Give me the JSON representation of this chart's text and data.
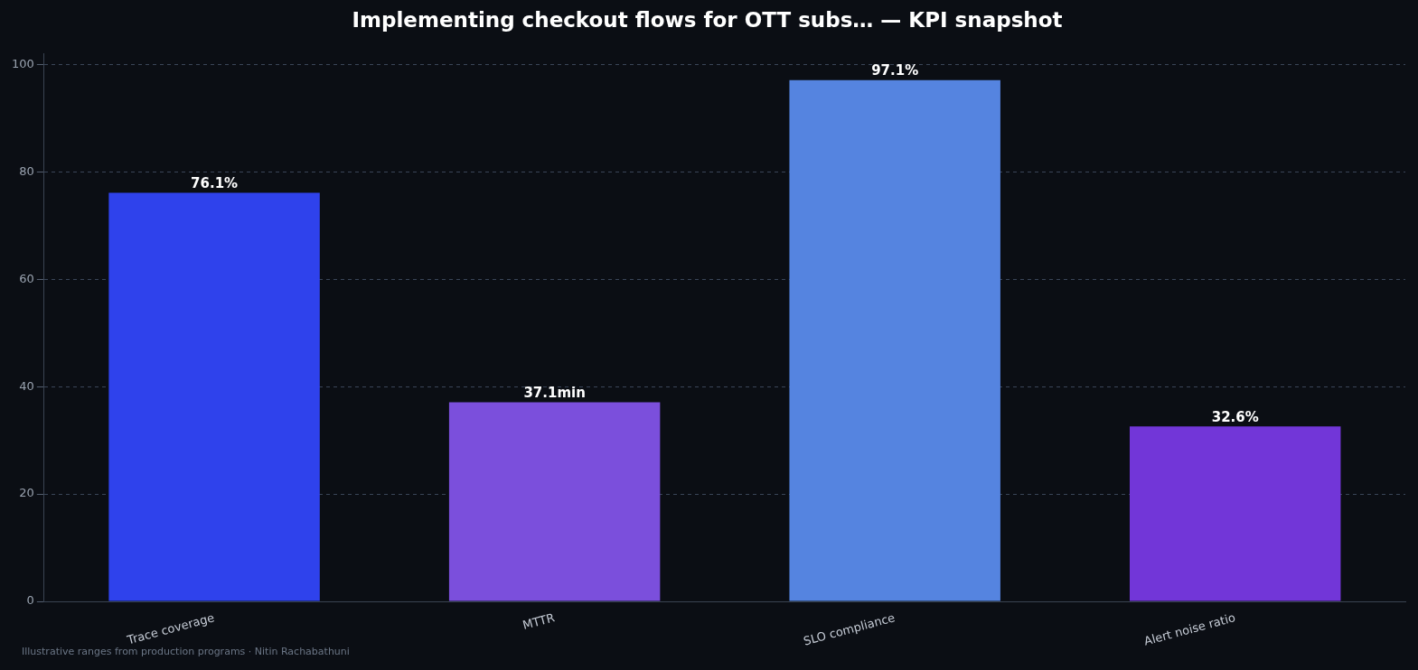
{
  "chart_data": {
    "type": "bar",
    "title": "Implementing checkout flows for OTT subs… — KPI snapshot",
    "categories": [
      "Trace coverage",
      "MTTR",
      "SLO compliance",
      "Alert noise ratio"
    ],
    "values": [
      76.1,
      37.1,
      97.1,
      32.6
    ],
    "colors": [
      "#2f42ec",
      "#7b4fdc",
      "#5584e0",
      "#7236d8"
    ],
    "value_labels": [
      "76.1%",
      "37.1min",
      "97.1%",
      "32.6%"
    ],
    "ylim": [
      0,
      102
    ],
    "yticks": [
      0,
      20,
      40,
      60,
      80,
      100
    ],
    "grid": "y",
    "legend": false,
    "annotations": [
      "Illustrative ranges from production programs · Nitin Rachabathuni"
    ]
  }
}
